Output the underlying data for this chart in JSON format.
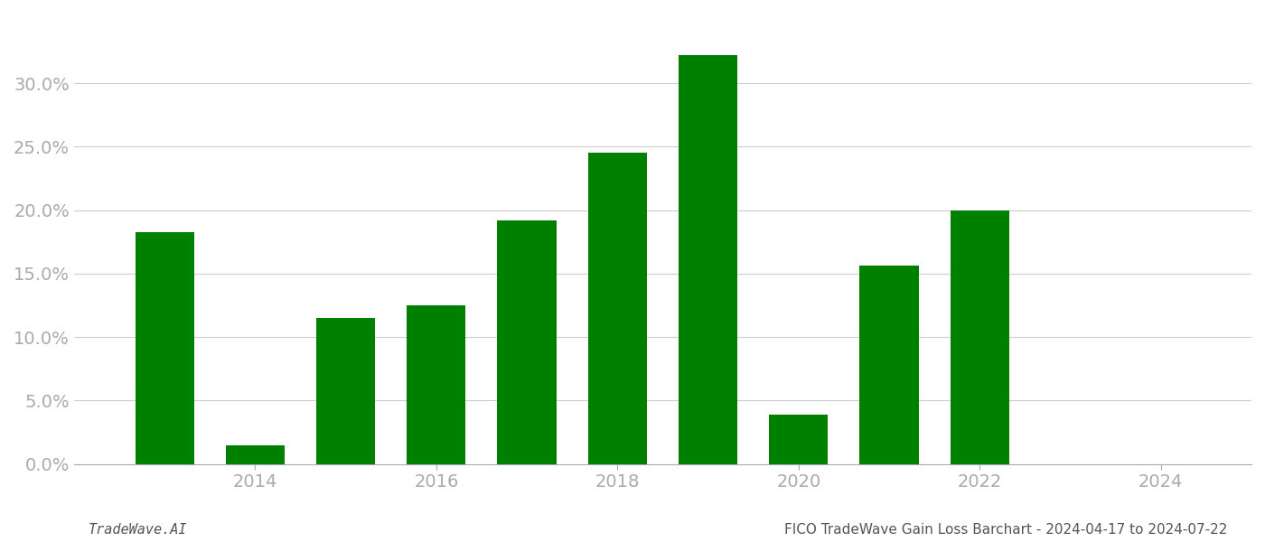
{
  "bar_data": [
    {
      "year": 2013,
      "value": 0.183
    },
    {
      "year": 2014,
      "value": 0.015
    },
    {
      "year": 2015,
      "value": 0.115
    },
    {
      "year": 2016,
      "value": 0.125
    },
    {
      "year": 2017,
      "value": 0.192
    },
    {
      "year": 2018,
      "value": 0.245
    },
    {
      "year": 2019,
      "value": 0.322
    },
    {
      "year": 2020,
      "value": 0.039
    },
    {
      "year": 2021,
      "value": 0.156
    },
    {
      "year": 2022,
      "value": 0.2
    }
  ],
  "bar_color": "#008000",
  "bar_width": 0.65,
  "xlim": [
    2012.0,
    2025.0
  ],
  "ylim": [
    0,
    0.355
  ],
  "yticks": [
    0.0,
    0.05,
    0.1,
    0.15,
    0.2,
    0.25,
    0.3
  ],
  "xticks": [
    2014,
    2016,
    2018,
    2020,
    2022,
    2024
  ],
  "footer_left": "TradeWave.AI",
  "footer_right": "FICO TradeWave Gain Loss Barchart - 2024-04-17 to 2024-07-22",
  "grid_color": "#cccccc",
  "background_color": "#ffffff",
  "tick_label_color": "#aaaaaa",
  "footer_fontsize": 11
}
